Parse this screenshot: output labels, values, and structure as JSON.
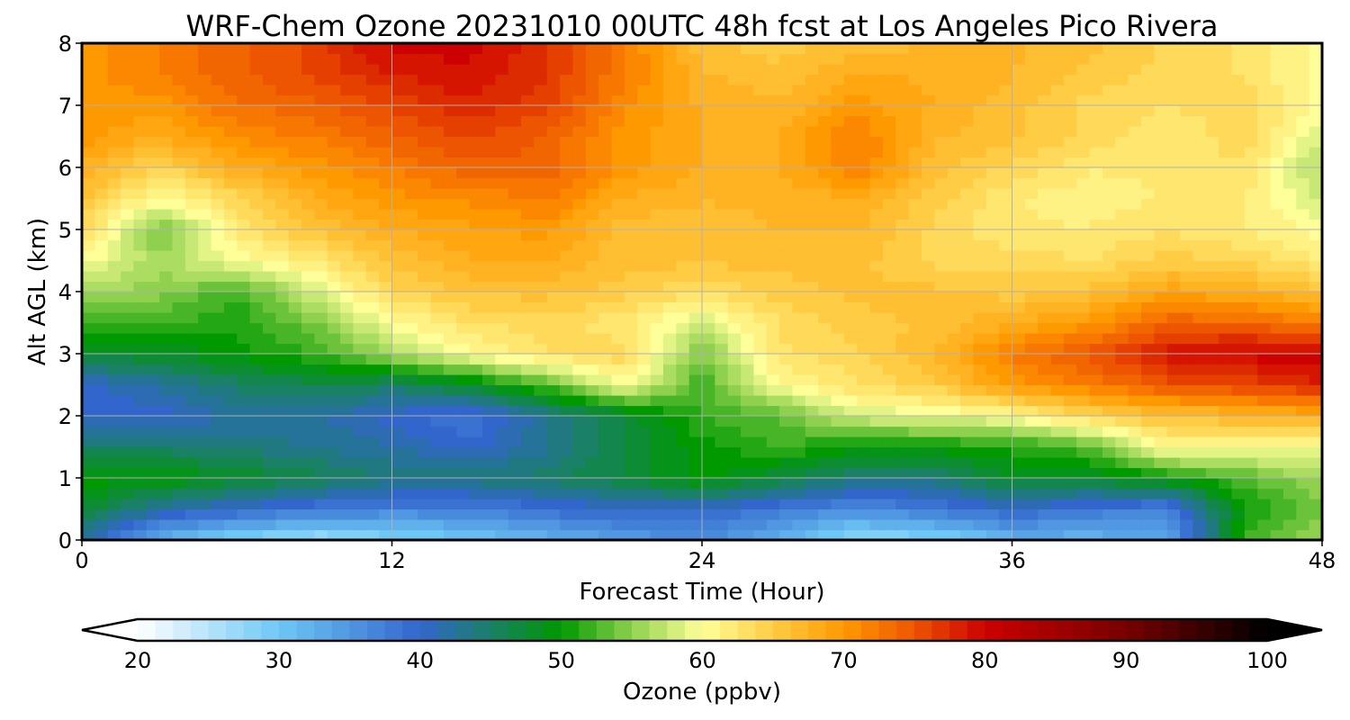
{
  "chart_data": {
    "type": "heatmap",
    "title": "WRF-Chem Ozone  20231010 00UTC 48h fcst at Los Angeles Pico Rivera",
    "xlabel": "Forecast Time (Hour)",
    "ylabel": "Alt AGL (km)",
    "xlim": [
      0,
      48
    ],
    "ylim": [
      0,
      8
    ],
    "x_ticks": [
      0,
      12,
      24,
      36,
      48
    ],
    "y_ticks": [
      0,
      1,
      2,
      3,
      4,
      5,
      6,
      7,
      8
    ],
    "grid": true,
    "x": [
      0,
      3,
      6,
      9,
      12,
      15,
      18,
      21,
      24,
      27,
      30,
      33,
      36,
      39,
      42,
      45,
      48
    ],
    "y": [
      0,
      0.5,
      1,
      1.5,
      2,
      2.5,
      3,
      3.5,
      4,
      4.5,
      5,
      5.5,
      6,
      6.5,
      7,
      7.5,
      8
    ],
    "z": [
      [
        42,
        32,
        28,
        26,
        28,
        30,
        32,
        34,
        36,
        32,
        27,
        28,
        32,
        32,
        33,
        52,
        56
      ],
      [
        48,
        42,
        40,
        38,
        37,
        37,
        39,
        40,
        40,
        38,
        36,
        38,
        40,
        38,
        37,
        50,
        54
      ],
      [
        50,
        50,
        48,
        46,
        44,
        44,
        45,
        47,
        50,
        47,
        44,
        44,
        48,
        48,
        50,
        53,
        56
      ],
      [
        45,
        45,
        44,
        43,
        42,
        40,
        43,
        47,
        50,
        52,
        50,
        50,
        51,
        53,
        61,
        60,
        60
      ],
      [
        40,
        40,
        42,
        42,
        40,
        38,
        43,
        47,
        52,
        53,
        58,
        59,
        60,
        64,
        66,
        67,
        68
      ],
      [
        40,
        42,
        45,
        46,
        45,
        48,
        53,
        60,
        52,
        60,
        63,
        65,
        70,
        72,
        75,
        76,
        78
      ],
      [
        48,
        48,
        50,
        52,
        56,
        60,
        63,
        64,
        54,
        63,
        64,
        67,
        72,
        75,
        79,
        80,
        80
      ],
      [
        52,
        52,
        51,
        54,
        60,
        63,
        64,
        62,
        58,
        63,
        65,
        66,
        68,
        70,
        74,
        74,
        72
      ],
      [
        56,
        55,
        52,
        58,
        64,
        66,
        66,
        65,
        63,
        65,
        66,
        66,
        65,
        66,
        69,
        68,
        66
      ],
      [
        60,
        56,
        60,
        62,
        66,
        68,
        68,
        66,
        66,
        66,
        66,
        64,
        64,
        63,
        65,
        64,
        62
      ],
      [
        64,
        54,
        62,
        66,
        68,
        69,
        70,
        66,
        66,
        67,
        67,
        64,
        62,
        62,
        63,
        62,
        60
      ],
      [
        66,
        60,
        64,
        68,
        70,
        71,
        72,
        68,
        67,
        67,
        68,
        65,
        62,
        61,
        62,
        62,
        58
      ],
      [
        68,
        64,
        68,
        70,
        72,
        74,
        74,
        70,
        68,
        68,
        72,
        66,
        64,
        62,
        62,
        63,
        56
      ],
      [
        70,
        68,
        71,
        72,
        74,
        76,
        74,
        70,
        68,
        68,
        72,
        67,
        66,
        64,
        62,
        64,
        58
      ],
      [
        70,
        70,
        73,
        74,
        76,
        78,
        76,
        71,
        68,
        67,
        70,
        68,
        66,
        64,
        63,
        64,
        60
      ],
      [
        70,
        72,
        74,
        76,
        78,
        79,
        77,
        72,
        67,
        66,
        68,
        68,
        67,
        65,
        64,
        63,
        60
      ],
      [
        70,
        72,
        74,
        76,
        80,
        80,
        77,
        72,
        66,
        65,
        66,
        67,
        67,
        66,
        64,
        63,
        60
      ]
    ],
    "colorbar": {
      "label": "Ozone  (ppbv)",
      "min": 20,
      "max": 100,
      "ticks": [
        20,
        30,
        40,
        50,
        60,
        70,
        80,
        90,
        100
      ],
      "extend": "both",
      "stops": [
        {
          "v": 20,
          "color": "#ffffff"
        },
        {
          "v": 30,
          "color": "#6ec8f5"
        },
        {
          "v": 40,
          "color": "#3366cc"
        },
        {
          "v": 50,
          "color": "#009900"
        },
        {
          "v": 55,
          "color": "#8fd14f"
        },
        {
          "v": 60,
          "color": "#ffff99"
        },
        {
          "v": 65,
          "color": "#ffcc44"
        },
        {
          "v": 70,
          "color": "#ff9900"
        },
        {
          "v": 75,
          "color": "#ee5500"
        },
        {
          "v": 80,
          "color": "#cc0000"
        },
        {
          "v": 90,
          "color": "#770000"
        },
        {
          "v": 100,
          "color": "#000000"
        }
      ]
    }
  }
}
